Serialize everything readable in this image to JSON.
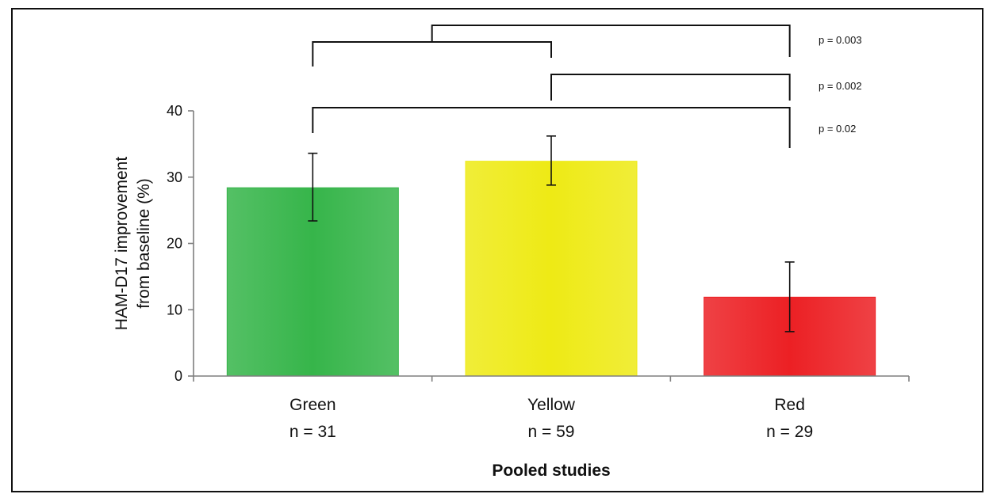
{
  "chart_data": {
    "type": "bar",
    "categories": [
      "Green",
      "Yellow",
      "Red"
    ],
    "category_sublabels": [
      "n = 31",
      "n = 59",
      "n = 29"
    ],
    "values": [
      28.4,
      32.4,
      11.9
    ],
    "error_low": [
      23.4,
      28.8,
      6.7
    ],
    "error_high": [
      33.6,
      36.2,
      17.2
    ],
    "colors": [
      "#36b54a",
      "#eeea15",
      "#ec2024"
    ],
    "xlabel": "Pooled studies",
    "ylabel_lines": [
      "HAM-D17 improvement",
      "from baseline (%)"
    ],
    "ylim": [
      0,
      40
    ],
    "yticks": [
      "0",
      "10",
      "20",
      "30",
      "40"
    ],
    "ytick_values": [
      0,
      10,
      20,
      30,
      40
    ],
    "grid": false,
    "significance": [
      {
        "label": "p = 0.003",
        "left": "Green-Yellow",
        "right": "Red"
      },
      {
        "label": "p = 0.002",
        "left": "Yellow",
        "right": "Red"
      },
      {
        "label": "p = 0.02",
        "left": "Green",
        "right": "Red"
      }
    ]
  }
}
